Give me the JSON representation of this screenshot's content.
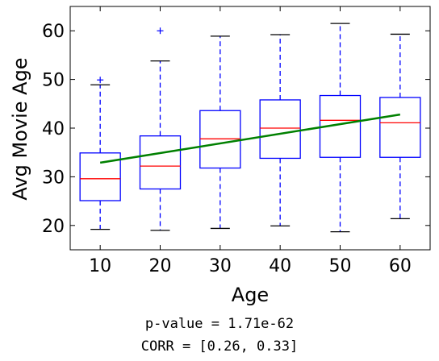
{
  "chart_data": {
    "type": "box",
    "xlabel": "Age",
    "ylabel": "Avg Movie Age",
    "categories": [
      10,
      20,
      30,
      40,
      50,
      60
    ],
    "xlim": [
      5,
      65
    ],
    "ylim": [
      15,
      65
    ],
    "yticks": [
      20,
      30,
      40,
      50,
      60
    ],
    "grid": false,
    "boxes": [
      {
        "x": 10,
        "whisker_low": 19.2,
        "q1": 25.1,
        "median": 29.6,
        "q3": 34.9,
        "whisker_high": 48.9,
        "outliers": [
          49.9
        ]
      },
      {
        "x": 20,
        "whisker_low": 19.0,
        "q1": 27.5,
        "median": 32.2,
        "q3": 38.4,
        "whisker_high": 53.8,
        "outliers": [
          60.0
        ]
      },
      {
        "x": 30,
        "whisker_low": 19.4,
        "q1": 31.8,
        "median": 37.8,
        "q3": 43.6,
        "whisker_high": 58.9,
        "outliers": []
      },
      {
        "x": 40,
        "whisker_low": 19.9,
        "q1": 33.8,
        "median": 40.0,
        "q3": 45.8,
        "whisker_high": 59.2,
        "outliers": []
      },
      {
        "x": 50,
        "whisker_low": 18.7,
        "q1": 34.0,
        "median": 41.6,
        "q3": 46.7,
        "whisker_high": 61.5,
        "outliers": []
      },
      {
        "x": 60,
        "whisker_low": 21.4,
        "q1": 34.0,
        "median": 41.1,
        "q3": 46.3,
        "whisker_high": 59.3,
        "outliers": []
      }
    ],
    "trend_line": {
      "x": [
        10,
        60
      ],
      "y": [
        32.9,
        42.8
      ]
    },
    "colors": {
      "box": "#0000ff",
      "median": "#ff0000",
      "trend": "#008000",
      "outlier": "#0000ff",
      "cap": "#000000"
    }
  },
  "stats": {
    "p_value": "p-value = 1.71e-62",
    "corr": "CORR = [0.26, 0.33]"
  }
}
